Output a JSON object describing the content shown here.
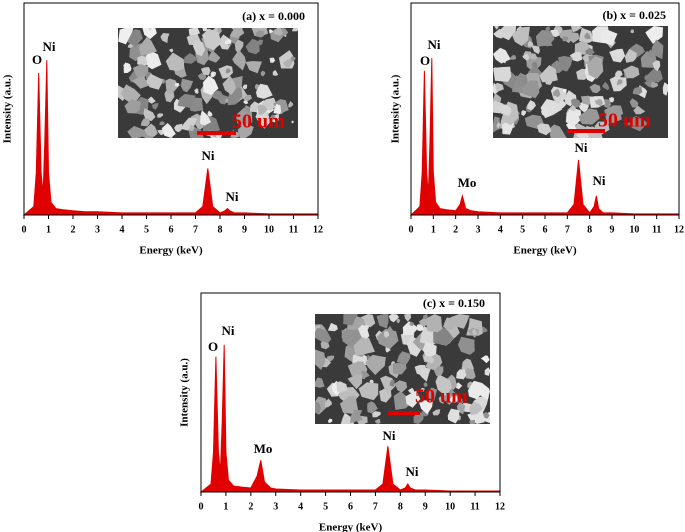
{
  "chart_data": [
    {
      "type": "area",
      "title": "(a) x = 0.000",
      "xlabel": "Energy (keV)",
      "ylabel": "Intensity (a.u.)",
      "color": "#e00000",
      "x": [
        0,
        0.2,
        0.4,
        0.5,
        0.6,
        0.7,
        0.78,
        0.85,
        0.93,
        1.0,
        1.1,
        1.3,
        1.6,
        2.0,
        2.5,
        3,
        4,
        5,
        6,
        7,
        7.3,
        7.5,
        7.7,
        8.0,
        8.2,
        8.3,
        8.4,
        8.6,
        9,
        10,
        11,
        12
      ],
      "values": [
        0,
        2,
        4,
        20,
        67,
        20,
        10,
        35,
        73,
        20,
        6,
        3,
        2.5,
        2,
        1.5,
        1.5,
        1,
        1,
        1,
        1,
        4,
        22,
        4,
        1,
        2,
        3,
        2,
        1,
        1,
        0.5,
        0.5,
        0.5
      ],
      "xlim": [
        0,
        12
      ],
      "xticks": [
        0,
        1,
        2,
        3,
        4,
        5,
        6,
        7,
        8,
        9,
        10,
        11,
        12
      ],
      "ylim": [
        0,
        100
      ],
      "annotations": [
        "O",
        "Ni",
        "Ni",
        "Ni"
      ],
      "scale_bar": "50 um"
    },
    {
      "type": "area",
      "title": "(b) x = 0.025",
      "xlabel": "Energy (keV)",
      "ylabel": "Intensity (a.u.)",
      "color": "#e00000",
      "x": [
        0,
        0.2,
        0.4,
        0.5,
        0.6,
        0.7,
        0.78,
        0.85,
        0.93,
        1.0,
        1.1,
        1.3,
        1.6,
        2.0,
        2.2,
        2.3,
        2.45,
        2.7,
        3,
        4,
        5,
        6,
        7,
        7.3,
        7.5,
        7.7,
        8.0,
        8.2,
        8.3,
        8.4,
        8.6,
        9,
        10,
        11,
        12
      ],
      "values": [
        0,
        2,
        4,
        20,
        68,
        20,
        10,
        35,
        74,
        20,
        6,
        3,
        2.5,
        2,
        5,
        9,
        3,
        2,
        1.5,
        1,
        1,
        1,
        1,
        5,
        26,
        5,
        1,
        4,
        9,
        3,
        1,
        1,
        0.5,
        0.5,
        0.5
      ],
      "xlim": [
        0,
        12
      ],
      "xticks": [
        0,
        1,
        2,
        3,
        4,
        5,
        6,
        7,
        8,
        9,
        10,
        11,
        12
      ],
      "ylim": [
        0,
        100
      ],
      "annotations": [
        "O",
        "Ni",
        "Mo",
        "Ni",
        "Ni"
      ],
      "scale_bar": "50 um"
    },
    {
      "type": "area",
      "title": "(c) x = 0.150",
      "xlabel": "Energy (keV)",
      "ylabel": "Intensity (a.u.)",
      "color": "#e00000",
      "x": [
        0,
        0.2,
        0.4,
        0.5,
        0.6,
        0.7,
        0.78,
        0.85,
        0.93,
        1.0,
        1.1,
        1.3,
        1.6,
        2.0,
        2.25,
        2.4,
        2.55,
        2.8,
        3,
        4,
        5,
        6,
        7,
        7.3,
        7.5,
        7.7,
        8.0,
        8.2,
        8.3,
        8.4,
        8.6,
        9,
        10,
        11,
        12
      ],
      "values": [
        0,
        2,
        4,
        20,
        68,
        20,
        10,
        35,
        74,
        20,
        6,
        3,
        2.5,
        2,
        8,
        16,
        5,
        2,
        1.5,
        1,
        1,
        1,
        1,
        4,
        23,
        4,
        1,
        2,
        4,
        2,
        1,
        1,
        0.5,
        0.5,
        0.5
      ],
      "xlim": [
        0,
        12
      ],
      "xticks": [
        0,
        1,
        2,
        3,
        4,
        5,
        6,
        7,
        8,
        9,
        10,
        11,
        12
      ],
      "ylim": [
        0,
        100
      ],
      "annotations": [
        "O",
        "Ni",
        "Mo",
        "Ni",
        "Ni"
      ],
      "scale_bar": "50 um"
    }
  ]
}
